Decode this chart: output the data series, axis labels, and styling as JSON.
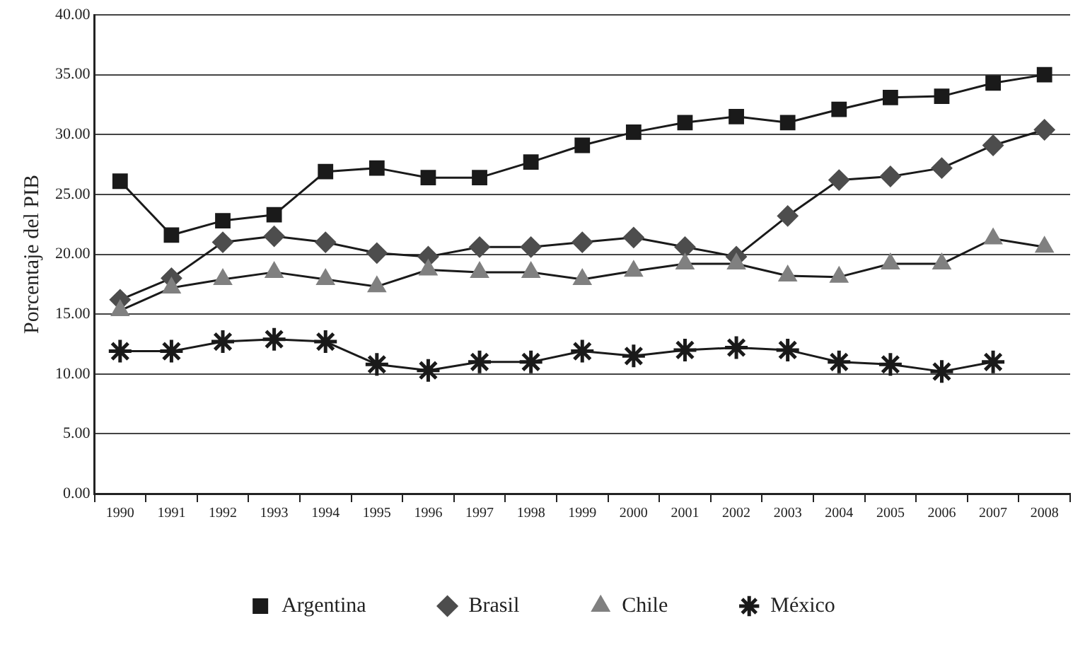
{
  "chart_data": {
    "type": "line",
    "ylabel": "Porcentaje del PIB",
    "categories": [
      "1990",
      "1991",
      "1992",
      "1993",
      "1994",
      "1995",
      "1996",
      "1997",
      "1998",
      "1999",
      "2000",
      "2001",
      "2002",
      "2003",
      "2004",
      "2005",
      "2006",
      "2007",
      "2008"
    ],
    "series": [
      {
        "name": "Argentina",
        "color": "#1a1a1a",
        "marker": "square",
        "values": [
          26.1,
          21.6,
          22.8,
          23.3,
          26.9,
          27.2,
          26.4,
          26.4,
          27.7,
          29.1,
          30.2,
          31.0,
          31.5,
          31.0,
          32.1,
          33.1,
          33.2,
          34.3,
          35.0
        ]
      },
      {
        "name": "Brasil",
        "color": "#4d4d4d",
        "marker": "diamond",
        "values": [
          16.2,
          18.0,
          21.0,
          21.5,
          21.0,
          20.1,
          19.8,
          20.6,
          20.6,
          21.0,
          21.4,
          20.6,
          19.8,
          23.2,
          26.2,
          26.5,
          27.2,
          29.1,
          30.4
        ]
      },
      {
        "name": "Chile",
        "color": "#808080",
        "marker": "triangle",
        "values": [
          15.3,
          17.2,
          17.9,
          18.5,
          17.9,
          17.3,
          18.7,
          18.5,
          18.5,
          17.9,
          18.6,
          19.2,
          19.2,
          18.2,
          18.1,
          19.2,
          19.2,
          21.3,
          20.6
        ]
      },
      {
        "name": "México",
        "color": "#1a1a1a",
        "marker": "cross",
        "values": [
          11.9,
          11.9,
          12.7,
          12.9,
          12.7,
          10.8,
          10.3,
          11.0,
          11.0,
          11.9,
          11.5,
          12.0,
          12.2,
          12.0,
          11.0,
          10.8,
          10.2,
          11.0,
          null
        ]
      }
    ],
    "ylim": [
      0,
      40
    ],
    "yticks": [
      {
        "value": 0,
        "label": "0.00"
      },
      {
        "value": 5,
        "label": "5.00"
      },
      {
        "value": 10,
        "label": "10.00"
      },
      {
        "value": 15,
        "label": "15.00"
      },
      {
        "value": 20,
        "label": "20.00"
      },
      {
        "value": 25,
        "label": "25.00"
      },
      {
        "value": 30,
        "label": "30.00"
      },
      {
        "value": 35,
        "label": "35.00"
      },
      {
        "value": 40,
        "label": "40.00"
      }
    ],
    "grid": "y",
    "legend": "bottom",
    "line_style": "solid"
  }
}
